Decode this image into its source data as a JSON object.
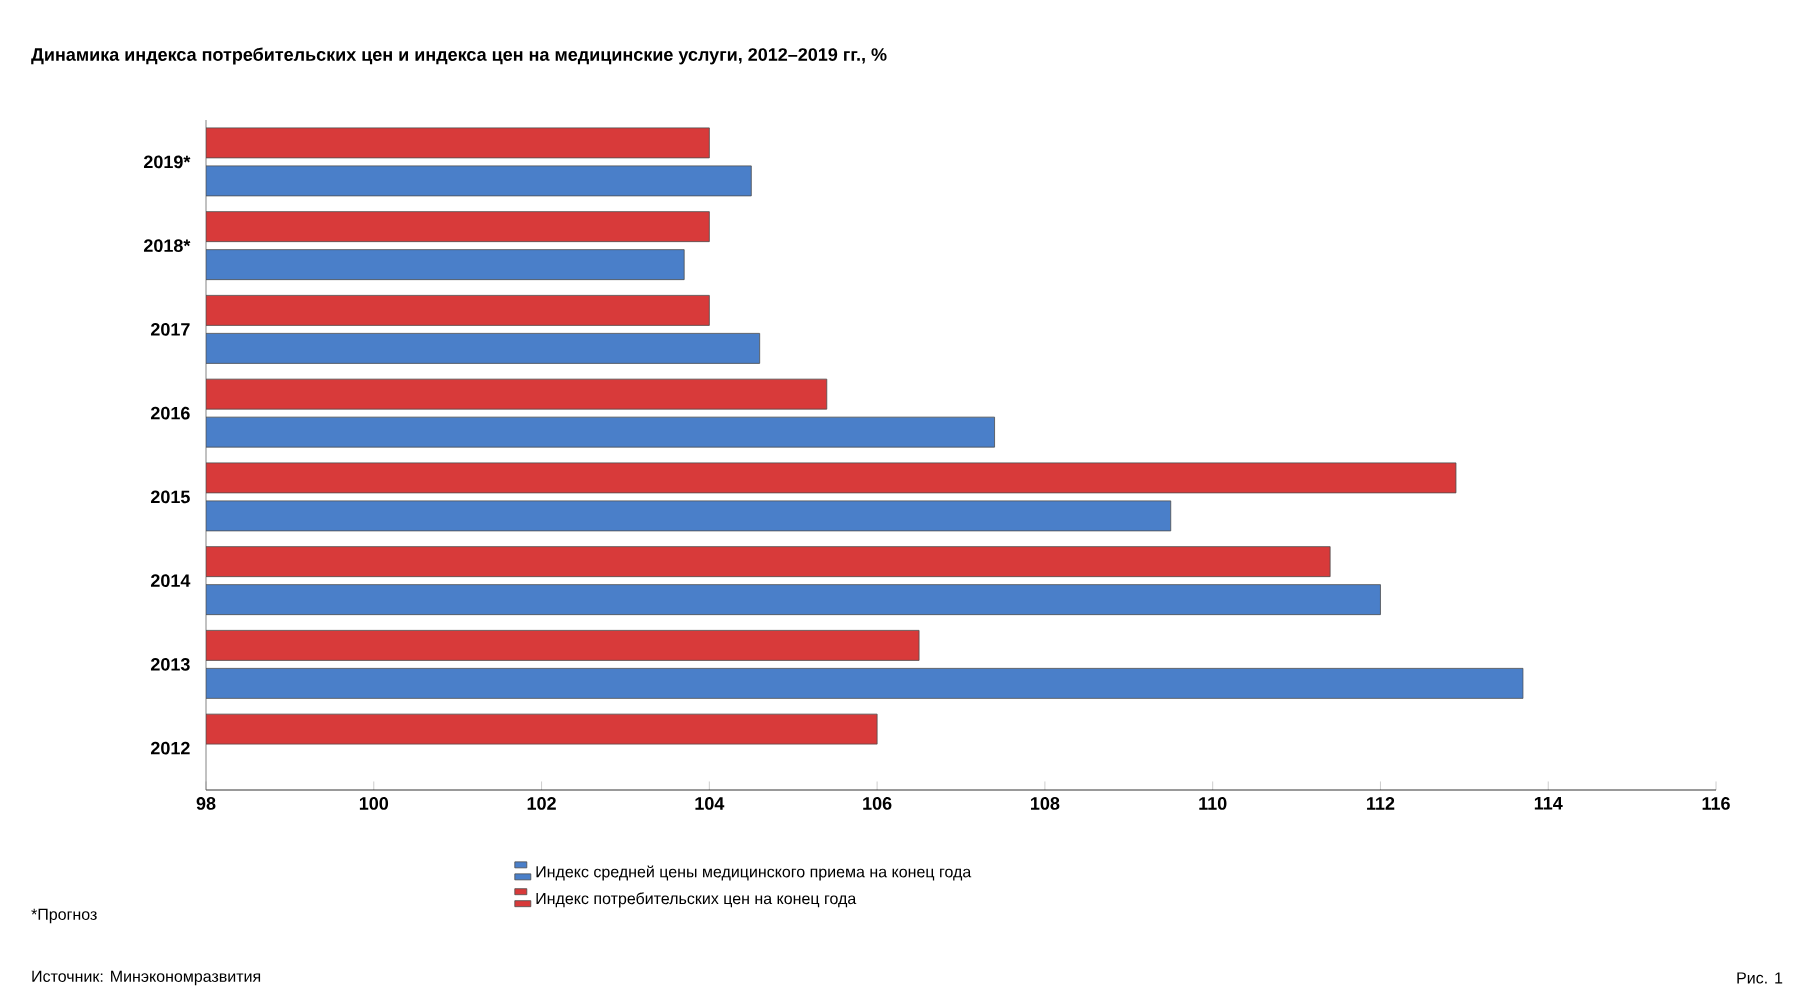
{
  "chart_data": {
    "type": "bar",
    "orientation": "horizontal",
    "title": "Динамика индекса потребительских цен и индекса цен на медицинские услуги, 2012–2019 гг., %",
    "categories": [
      "2019*",
      "2018*",
      "2017",
      "2016",
      "2015",
      "2014",
      "2013",
      "2012"
    ],
    "series": [
      {
        "name": "Индекс средней цены медицинского приема на конец года",
        "color": "#4a7fc9",
        "values": [
          104.5,
          103.7,
          104.6,
          107.4,
          109.5,
          112.0,
          113.7,
          null
        ]
      },
      {
        "name": "Индекс потребительских цен на конец года",
        "color": "#d83a3a",
        "values": [
          104.0,
          104.0,
          104.0,
          105.4,
          112.9,
          111.4,
          106.5,
          106.0
        ]
      }
    ],
    "xlim": [
      98,
      116
    ],
    "xticks": [
      98,
      100,
      102,
      104,
      106,
      108,
      110,
      112,
      114,
      116
    ],
    "grid": false,
    "legend": "bottom",
    "annotations": [
      "*Прогноз",
      "Источник: Минэкономразвития",
      "Рис. 1"
    ]
  }
}
